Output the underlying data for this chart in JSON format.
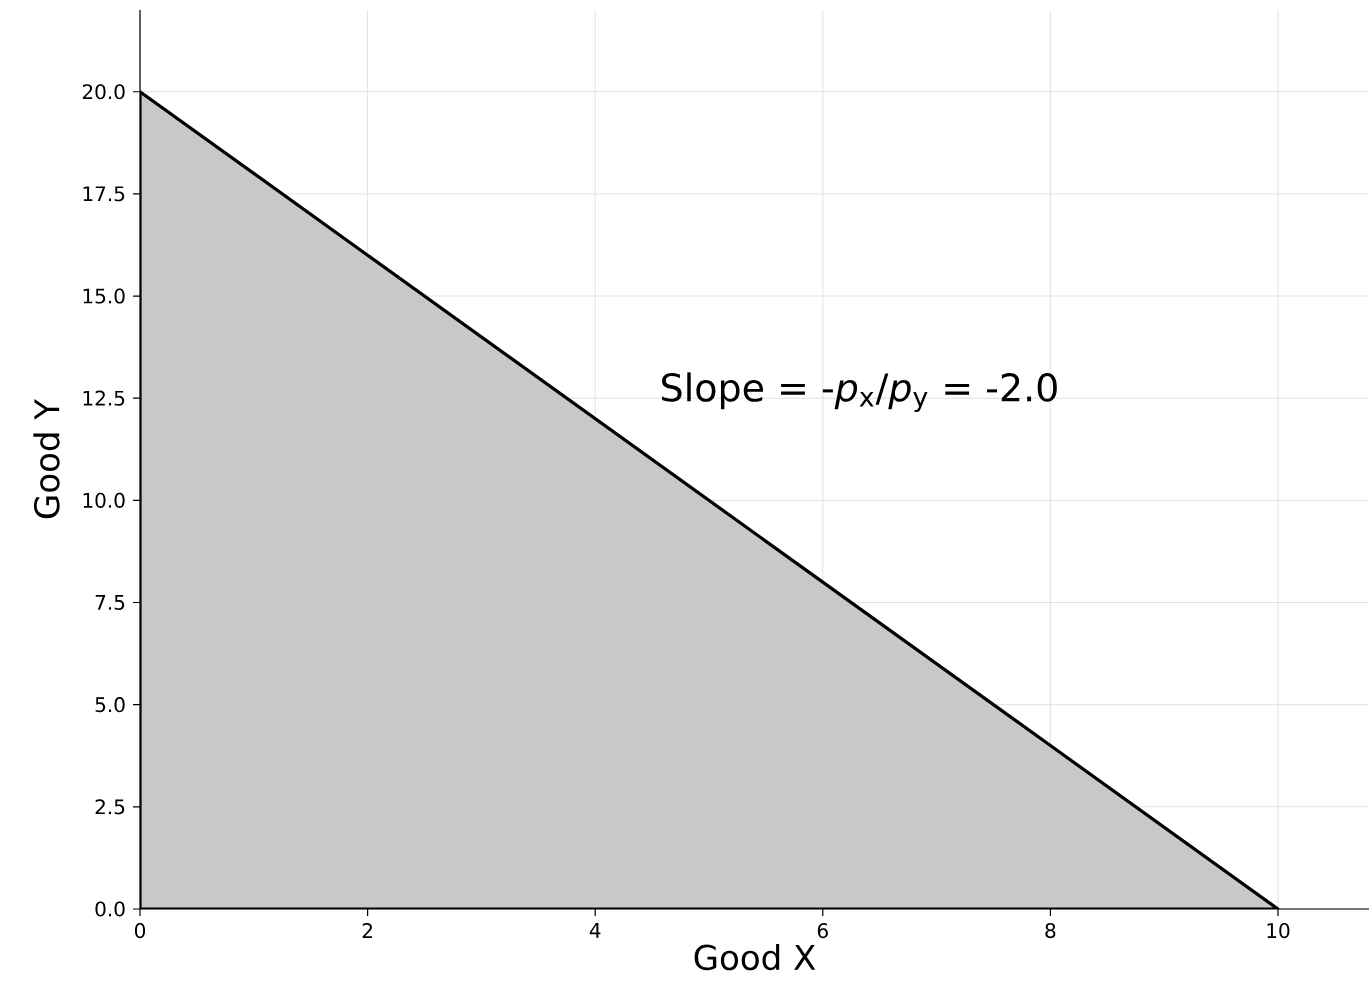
{
  "chart_data": {
    "type": "area",
    "xlabel": "Good X",
    "ylabel": "Good Y",
    "x": [
      0,
      2,
      4,
      6,
      8,
      10
    ],
    "series": [
      {
        "color": "#c8c8c8",
        "values": [
          20,
          16,
          12,
          8,
          4,
          0
        ]
      }
    ],
    "xlim": [
      0,
      10.8
    ],
    "ylim": [
      0,
      22
    ],
    "xticks": [
      0,
      2,
      4,
      6,
      8,
      10
    ],
    "yticks": [
      {
        "value": 0,
        "label": "0.0"
      },
      {
        "value": 2.5,
        "label": "2.5"
      },
      {
        "value": 5,
        "label": "5.0"
      },
      {
        "value": 7.5,
        "label": "7.5"
      },
      {
        "value": 10,
        "label": "10.0"
      },
      {
        "value": 12.5,
        "label": "12.5"
      },
      {
        "value": 15,
        "label": "15.0"
      },
      {
        "value": 17.5,
        "label": "17.5"
      },
      {
        "value": 20,
        "label": "20.0"
      }
    ],
    "grid": true,
    "annotations": [
      "Slope = -*p*$_{x}$/*p*$_{y}$ = -2.0"
    ]
  }
}
